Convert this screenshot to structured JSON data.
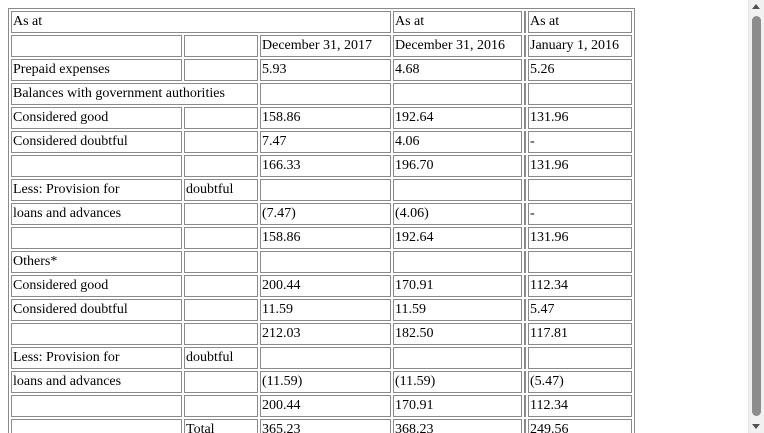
{
  "header": {
    "as_at_1": "As at",
    "as_at_2": "As at",
    "as_at_3": "As at",
    "date_1": "December 31, 2017",
    "date_2": "December 31, 2016",
    "date_3": "January 1, 2016"
  },
  "rows": {
    "prepaid": {
      "label": "Prepaid expenses",
      "v1": "5.93",
      "v2": "4.68",
      "v3": "5.26"
    },
    "balances_heading": {
      "label": "Balances with government authorities"
    },
    "bal_good": {
      "label": "Considered good",
      "v1": "158.86",
      "v2": "192.64",
      "v3": "131.96"
    },
    "bal_doubtful": {
      "label": "Considered doubtful",
      "v1": "7.47",
      "v2": "4.06",
      "v3": "-"
    },
    "bal_subtotal": {
      "v1": "166.33",
      "v2": "196.70",
      "v3": "131.96"
    },
    "bal_less_provision": {
      "label": "Less: Provision for",
      "label_b": "doubtful"
    },
    "bal_loans": {
      "label": "loans and advances",
      "v1": "(7.47)",
      "v2": "(4.06)",
      "v3": "-"
    },
    "bal_net": {
      "v1": "158.86",
      "v2": "192.64",
      "v3": "131.96"
    },
    "others_heading": {
      "label": "Others*"
    },
    "oth_good": {
      "label": "Considered good",
      "v1": "200.44",
      "v2": "170.91",
      "v3": "112.34"
    },
    "oth_doubtful": {
      "label": "Considered doubtful",
      "v1": "11.59",
      "v2": "11.59",
      "v3": "5.47"
    },
    "oth_subtotal": {
      "v1": "212.03",
      "v2": "182.50",
      "v3": "117.81"
    },
    "oth_less_provision": {
      "label": "Less: Provision for",
      "label_b": "doubtful"
    },
    "oth_loans": {
      "label": "loans and advances",
      "v1": "(11.59)",
      "v2": "(11.59)",
      "v3": "(5.47)"
    },
    "oth_net": {
      "v1": "200.44",
      "v2": "170.91",
      "v3": "112.34"
    },
    "total": {
      "label": "Total",
      "v1": "365.23",
      "v2": "368.23",
      "v3": "249.56"
    }
  }
}
